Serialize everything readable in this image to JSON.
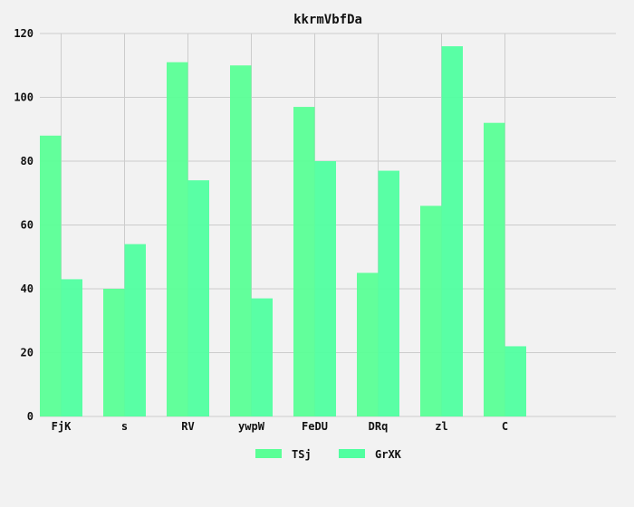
{
  "chart_data": {
    "type": "bar",
    "title": "kkrmVbfDa",
    "xlabel": "",
    "ylabel": "",
    "categories": [
      "FjK",
      "s",
      "RV",
      "ywpW",
      "FeDU",
      "DRq",
      "zl",
      "C"
    ],
    "series": [
      {
        "name": "TSj",
        "values": [
          88,
          40,
          111,
          110,
          97,
          45,
          66,
          92
        ],
        "color": "#5aff96"
      },
      {
        "name": "GrXK",
        "values": [
          43,
          54,
          74,
          37,
          80,
          77,
          116,
          22
        ],
        "color": "#50ffa0"
      }
    ],
    "ylim": [
      0,
      120
    ],
    "yticks": [
      0,
      20,
      40,
      60,
      80,
      100,
      120
    ],
    "grid": true,
    "legend_position": "bottom-center",
    "background": "#f2f2f2",
    "grid_color": "#cccccc"
  }
}
